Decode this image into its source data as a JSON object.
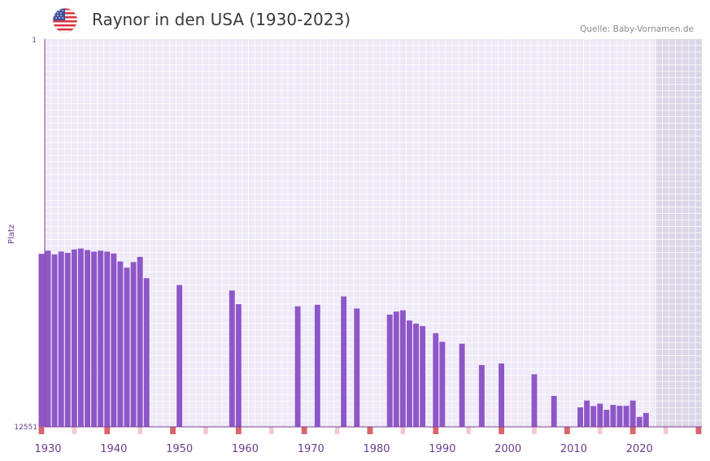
{
  "header": {
    "title": "Raynor in den USA (1930-2023)",
    "source": "Quelle: Baby-Vornamen.de",
    "flag_icon": "us-flag-icon"
  },
  "colors": {
    "bar": "#8e57c8",
    "plot_bg": "#efe9f8",
    "grid": "#ffffff",
    "future_shade": "#dcd6e8",
    "axis": "#7d3f8c",
    "tick_label": "#6a3d8f",
    "decade_marker": "#d9646e",
    "light_marker": "#f2c9d3"
  },
  "chart_data": {
    "type": "bar",
    "title": "Raynor in den USA (1930-2023)",
    "ylabel": "Platz",
    "y_axis_inverted": true,
    "y_ticks": [
      "1",
      "12551"
    ],
    "ylim": [
      1,
      12551
    ],
    "xlim": [
      1929.5,
      2029.5
    ],
    "future_from_year": 2022.5,
    "x_ticks": [
      1930,
      1940,
      1950,
      1960,
      1970,
      1980,
      1990,
      2000,
      2010,
      2020
    ],
    "years": [
      1929,
      1930,
      1931,
      1932,
      1933,
      1934,
      1935,
      1936,
      1937,
      1938,
      1939,
      1940,
      1941,
      1942,
      1943,
      1944,
      1945,
      1950,
      1958,
      1959,
      1968,
      1971,
      1975,
      1977,
      1982,
      1983,
      1984,
      1985,
      1986,
      1987,
      1989,
      1990,
      1993,
      1996,
      1999,
      2004,
      2007,
      2011,
      2012,
      2013,
      2014,
      2015,
      2016,
      2017,
      2018,
      2019,
      2020,
      2021
    ],
    "values": [
      6950,
      6850,
      6970,
      6880,
      6920,
      6810,
      6780,
      6830,
      6880,
      6850,
      6880,
      6940,
      7200,
      7400,
      7220,
      7050,
      7740,
      7960,
      8140,
      8580,
      8650,
      8600,
      8330,
      8720,
      8920,
      8820,
      8780,
      9110,
      9210,
      9290,
      9520,
      9800,
      9860,
      10550,
      10500,
      10850,
      11550,
      11920,
      11700,
      11880,
      11800,
      12000,
      11840,
      11870,
      11870,
      11700,
      12230,
      12100
    ]
  }
}
